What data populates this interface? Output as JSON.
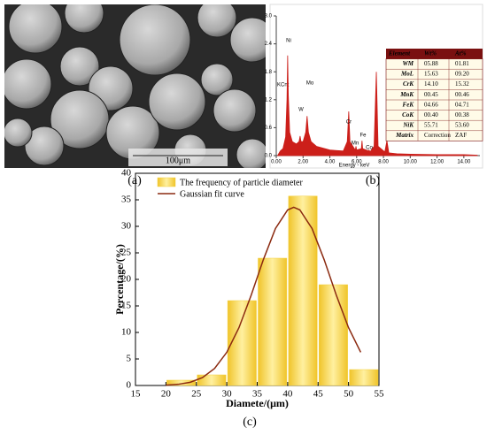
{
  "image": {
    "label": "(a)",
    "scale_bar": "100μm"
  },
  "table": {
    "header": [
      "Element",
      "Wt%",
      "At%"
    ],
    "rows": [
      [
        "WM",
        "05.88",
        "01.81"
      ],
      [
        "MoL",
        "15.63",
        "09.20"
      ],
      [
        "CrK",
        "14.10",
        "15.32"
      ],
      [
        "MnK",
        "00.45",
        "00.46"
      ],
      [
        "FeK",
        "04.66",
        "04.71"
      ],
      [
        "CoK",
        "00.40",
        "00.38"
      ],
      [
        "NiK",
        "55.71",
        "53.60"
      ],
      [
        "Matrix",
        "Correction",
        "ZAF"
      ]
    ]
  },
  "chart_data": [
    {
      "type": "area",
      "label": "(b)",
      "ylabel": "KCnt",
      "xlabel": "Energy - keV",
      "color": "#cc1f1a",
      "x": [
        0.1,
        0.3,
        0.5,
        0.7,
        0.8,
        0.85,
        0.9,
        1.0,
        1.2,
        1.5,
        1.7,
        1.78,
        1.85,
        2.0,
        2.2,
        2.3,
        2.4,
        2.6,
        3.0,
        4.0,
        5.0,
        5.3,
        5.41,
        5.5,
        5.9,
        5.95,
        6.0,
        6.35,
        6.4,
        6.45,
        6.9,
        6.93,
        7.0,
        7.3,
        7.47,
        7.6,
        8.1,
        8.26,
        8.4,
        9,
        10,
        12,
        14,
        15
      ],
      "values": [
        0,
        0.1,
        0.15,
        0.4,
        1.2,
        2.15,
        1.3,
        0.5,
        0.3,
        0.25,
        0.3,
        0.42,
        0.3,
        0.3,
        0.5,
        0.85,
        0.5,
        0.3,
        0.2,
        0.12,
        0.1,
        0.3,
        0.95,
        0.3,
        0.12,
        0.2,
        0.12,
        0.15,
        0.32,
        0.15,
        0.1,
        0.12,
        0.08,
        0.2,
        1.8,
        0.2,
        0.08,
        0.32,
        0.06,
        0.04,
        0.03,
        0.02,
        0.02,
        0.01
      ],
      "annotations": [
        "Ni",
        "Mo",
        "W",
        "Cr",
        "Fe",
        "Mn",
        "Co",
        "Ni"
      ],
      "xlim": [
        0,
        15.2
      ],
      "ylim": [
        0,
        3.0
      ],
      "xticks": [
        {
          "value": 0,
          "label": "0.00"
        },
        {
          "value": 2,
          "label": "2.00"
        },
        {
          "value": 4,
          "label": "4.00"
        },
        {
          "value": 6,
          "label": "6.00"
        },
        {
          "value": 8,
          "label": "8.00"
        },
        {
          "value": 10,
          "label": "10.00"
        },
        {
          "value": 12,
          "label": "12.00"
        },
        {
          "value": 14,
          "label": "14.00"
        }
      ],
      "yticks": [
        {
          "value": 0,
          "label": "0.0"
        },
        {
          "value": 0.6,
          "label": "0.6"
        },
        {
          "value": 1.2,
          "label": "1.2"
        },
        {
          "value": 1.8,
          "label": "1.8"
        },
        {
          "value": 2.4,
          "label": "2.4"
        },
        {
          "value": 3,
          "label": "3.0"
        }
      ]
    },
    {
      "type": "histogram",
      "label": "(c)",
      "xlabel": "Diamete/(μm)",
      "ylabel": "Percentage/(%)",
      "bins": [
        20,
        25,
        30,
        35,
        40,
        45,
        50,
        55
      ],
      "series": [
        {
          "name": "The frequency of particle diameter",
          "color": "#f2cf3c",
          "values": [
            1,
            2,
            16,
            24,
            35.7,
            19,
            3
          ]
        },
        {
          "name": "Gaussian fit curve",
          "color": "#8b2a10",
          "x": [
            20,
            22,
            24,
            26,
            28,
            30,
            32,
            34,
            36,
            38,
            40,
            41,
            42,
            44,
            46,
            48,
            50,
            52
          ],
          "values": [
            0.07,
            0.22,
            0.61,
            1.48,
            3.21,
            6.26,
            10.9,
            17.0,
            23.7,
            29.6,
            33.1,
            33.6,
            33.1,
            29.6,
            23.7,
            17.0,
            10.9,
            6.26
          ]
        }
      ],
      "xlim": [
        15,
        55
      ],
      "ylim": [
        0,
        40
      ],
      "xticks": [
        15,
        20,
        25,
        30,
        35,
        40,
        45,
        50,
        55
      ],
      "yticks": [
        0,
        5,
        10,
        15,
        20,
        25,
        30,
        35,
        40
      ],
      "legend": "upper left"
    }
  ]
}
